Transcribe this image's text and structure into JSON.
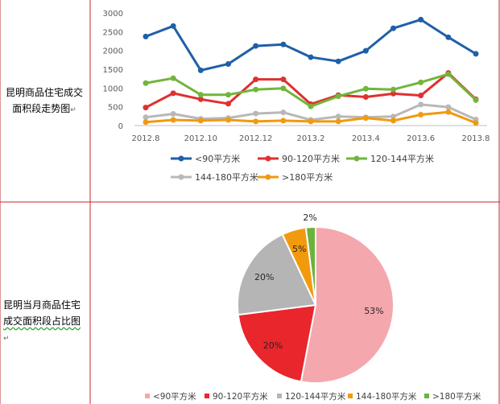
{
  "row1_label": {
    "line1": "昆明商品住宅成交",
    "line2": "面积段走势图",
    "mark": "↵"
  },
  "row2_label": {
    "line1": "昆明当月商品住宅",
    "line2": "成交面积段占比图",
    "mark": "↵"
  },
  "chart_data": [
    {
      "type": "line",
      "x": [
        "2012.8",
        "2012.9",
        "2012.10",
        "2012.11",
        "2012.12",
        "2013.1",
        "2013.2",
        "2013.3",
        "2013.4",
        "2013.5",
        "2013.6",
        "2013.7",
        "2013.8"
      ],
      "x_tick_labels": [
        "2012.8",
        "2012.10",
        "2012.12",
        "2013.2",
        "2013.4",
        "2013.6",
        "2013.8"
      ],
      "y_ticks": [
        "0",
        "500",
        "1000",
        "1500",
        "2000",
        "2500",
        "3000"
      ],
      "ylim": [
        0,
        3000
      ],
      "grid": false,
      "legend_position": "bottom",
      "series": [
        {
          "name": "<90平方米",
          "color": "#1f5fa8",
          "values": [
            2370,
            2650,
            1470,
            1640,
            2120,
            2160,
            1820,
            1710,
            1990,
            2590,
            2820,
            2350,
            1910
          ]
        },
        {
          "name": "90-120平方米",
          "color": "#e03030",
          "values": [
            480,
            860,
            700,
            580,
            1230,
            1230,
            570,
            810,
            760,
            850,
            800,
            1400,
            700
          ]
        },
        {
          "name": "120-144平方米",
          "color": "#72b53c",
          "values": [
            1130,
            1260,
            820,
            820,
            960,
            990,
            510,
            780,
            980,
            960,
            1150,
            1370,
            680
          ]
        },
        {
          "name": "144-180平方米",
          "color": "#b8b8b8",
          "values": [
            220,
            310,
            180,
            200,
            320,
            350,
            150,
            240,
            220,
            240,
            560,
            490,
            160
          ]
        },
        {
          "name": ">180平方米",
          "color": "#f09a10",
          "values": [
            90,
            150,
            130,
            150,
            110,
            130,
            110,
            110,
            200,
            130,
            290,
            360,
            70
          ]
        }
      ]
    },
    {
      "type": "pie",
      "slices": [
        {
          "name": "<90平方米",
          "value": 53,
          "label": "53%",
          "color": "#f4a7ad"
        },
        {
          "name": "90-120平方米",
          "value": 20,
          "label": "20%",
          "color": "#e8262c"
        },
        {
          "name": "120-144平方米",
          "value": 20,
          "label": "20%",
          "color": "#b5b5b5"
        },
        {
          "name": "144-180平方米",
          "value": 5,
          "label": "5%",
          "color": "#f29a0e"
        },
        {
          "name": ">180平方米",
          "value": 2,
          "label": "2%",
          "color": "#6cb33e"
        }
      ],
      "legend_position": "bottom"
    }
  ]
}
